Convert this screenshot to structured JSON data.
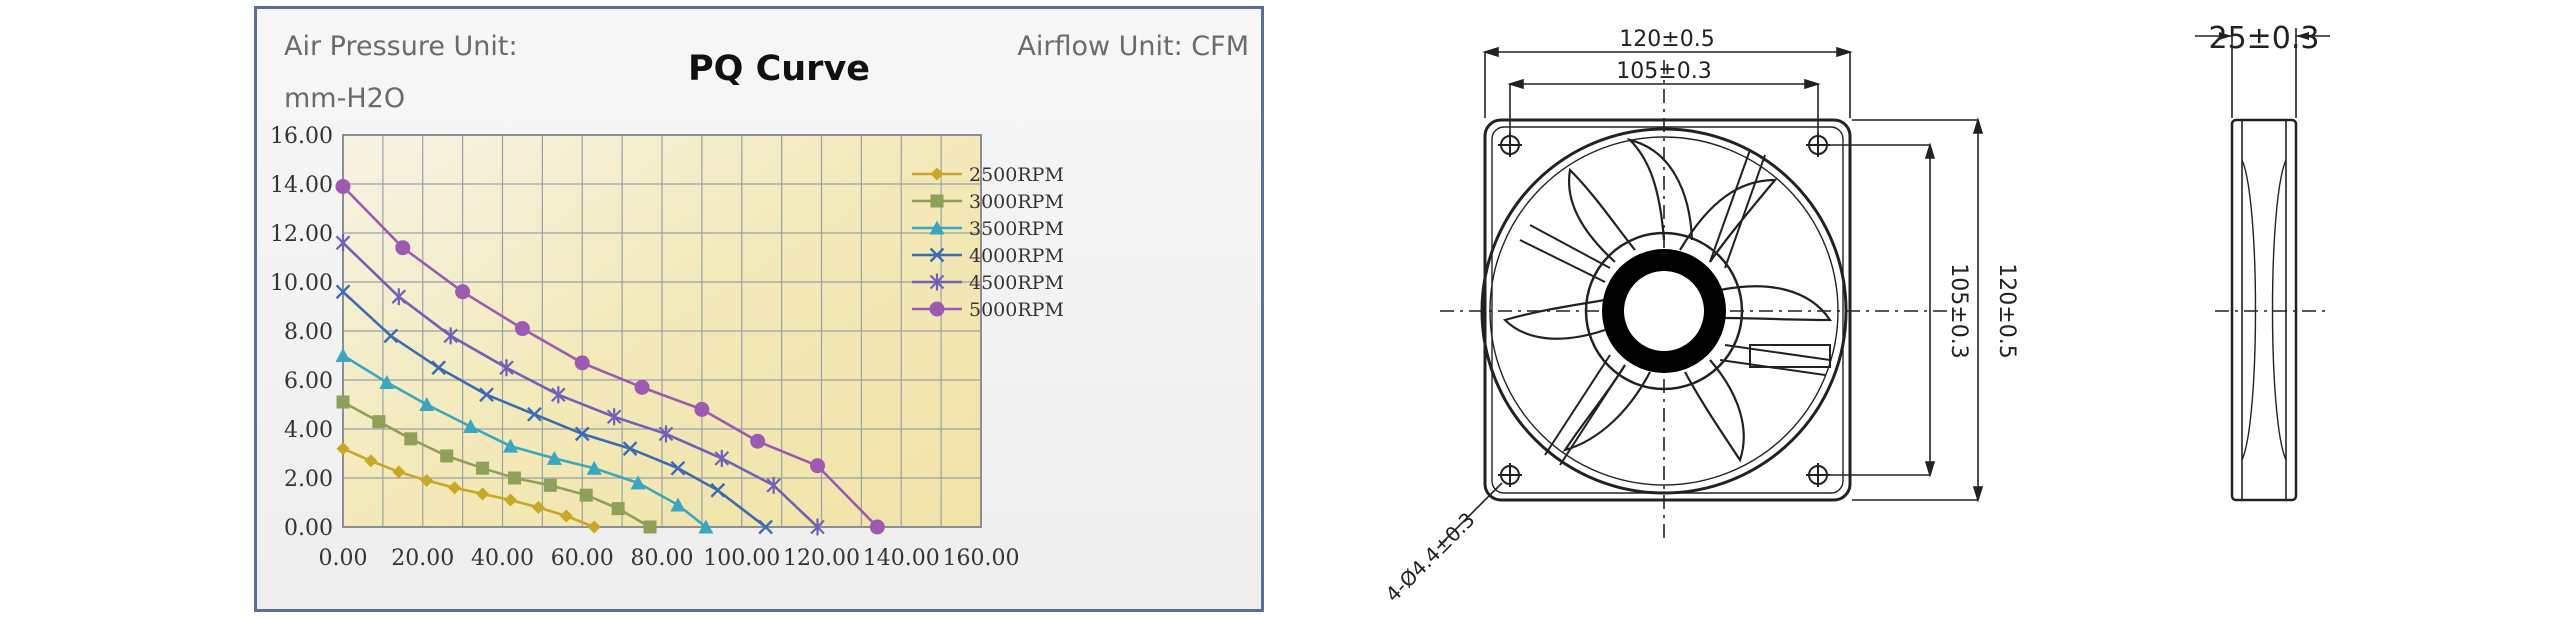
{
  "chart_data": {
    "type": "line",
    "title": "PQ Curve",
    "pressure_unit_label": "Air Pressure Unit:",
    "pressure_unit": "mm-H2O",
    "airflow_unit_label": "Airflow Unit: CFM",
    "xlim": [
      0,
      160
    ],
    "ylim": [
      0,
      16
    ],
    "x_ticks": [
      "0.00",
      "20.00",
      "40.00",
      "60.00",
      "80.00",
      "100.00",
      "120.00",
      "140.00",
      "160.00"
    ],
    "y_ticks": [
      "0.00",
      "2.00",
      "4.00",
      "6.00",
      "8.00",
      "10.00",
      "12.00",
      "14.00",
      "16.00"
    ],
    "grid": true,
    "legend_position": "top-right",
    "series": [
      {
        "name": "2500RPM",
        "color": "#c8a828",
        "marker": "diamond",
        "x": [
          0,
          7,
          14,
          21,
          28,
          35,
          42,
          49,
          56,
          63
        ],
        "y": [
          3.2,
          2.7,
          2.25,
          1.9,
          1.6,
          1.35,
          1.1,
          0.8,
          0.45,
          0
        ]
      },
      {
        "name": "3000RPM",
        "color": "#8fa05a",
        "marker": "square",
        "x": [
          0,
          9,
          17,
          26,
          35,
          43,
          52,
          61,
          69,
          77
        ],
        "y": [
          5.1,
          4.3,
          3.6,
          2.9,
          2.4,
          2.0,
          1.7,
          1.3,
          0.75,
          0
        ]
      },
      {
        "name": "3500RPM",
        "color": "#3aa6bf",
        "marker": "triangle",
        "x": [
          0,
          11,
          21,
          32,
          42,
          53,
          63,
          74,
          84,
          91
        ],
        "y": [
          7.0,
          5.9,
          5.0,
          4.1,
          3.3,
          2.8,
          2.4,
          1.8,
          0.9,
          0
        ]
      },
      {
        "name": "4000RPM",
        "color": "#3c6bb2",
        "marker": "x",
        "x": [
          0,
          12,
          24,
          36,
          48,
          60,
          72,
          84,
          94,
          106
        ],
        "y": [
          9.6,
          7.8,
          6.5,
          5.4,
          4.6,
          3.8,
          3.2,
          2.4,
          1.5,
          0
        ]
      },
      {
        "name": "4500RPM",
        "color": "#7060b8",
        "marker": "star",
        "x": [
          0,
          14,
          27,
          41,
          54,
          68,
          81,
          95,
          108,
          119
        ],
        "y": [
          11.6,
          9.4,
          7.8,
          6.5,
          5.4,
          4.5,
          3.8,
          2.8,
          1.7,
          0
        ]
      },
      {
        "name": "5000RPM",
        "color": "#9c5bb0",
        "marker": "circle",
        "x": [
          0,
          15,
          30,
          45,
          60,
          75,
          90,
          104,
          119,
          134
        ],
        "y": [
          13.9,
          11.4,
          9.6,
          8.1,
          6.7,
          5.7,
          4.8,
          3.5,
          2.5,
          0
        ]
      }
    ]
  },
  "drawing": {
    "front_width": "120±0.5",
    "hole_spacing_h": "105±0.3",
    "hole_spacing_v": "105±0.3",
    "front_height": "120±0.5",
    "mounting_holes": "4-Ø4.4±0.3",
    "thickness": "25±0.3"
  }
}
